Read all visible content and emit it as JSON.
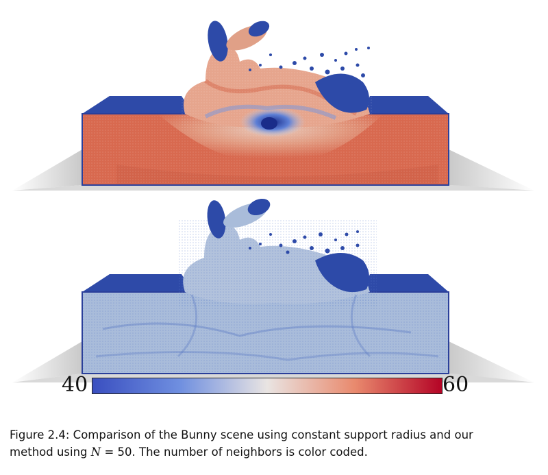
{
  "figure": {
    "top_panel": {
      "name": "constant support radius",
      "dominant_color": "#d8694f"
    },
    "bottom_panel": {
      "name": "our method N = 50",
      "dominant_color": "#9fb6d6"
    },
    "colorbar": {
      "min_label": "40",
      "max_label": "60",
      "min_color": "#3a4fc0",
      "mid_color": "#e9e4e2",
      "max_color": "#b40426"
    }
  },
  "caption": {
    "line1": "Figure 2.4: Comparison of the Bunny scene using constant support radius and our",
    "line2_prefix": "method using ",
    "math_var": "N",
    "math_eq": " = 50",
    "line2_suffix": ". The number of neighbors is color coded."
  }
}
